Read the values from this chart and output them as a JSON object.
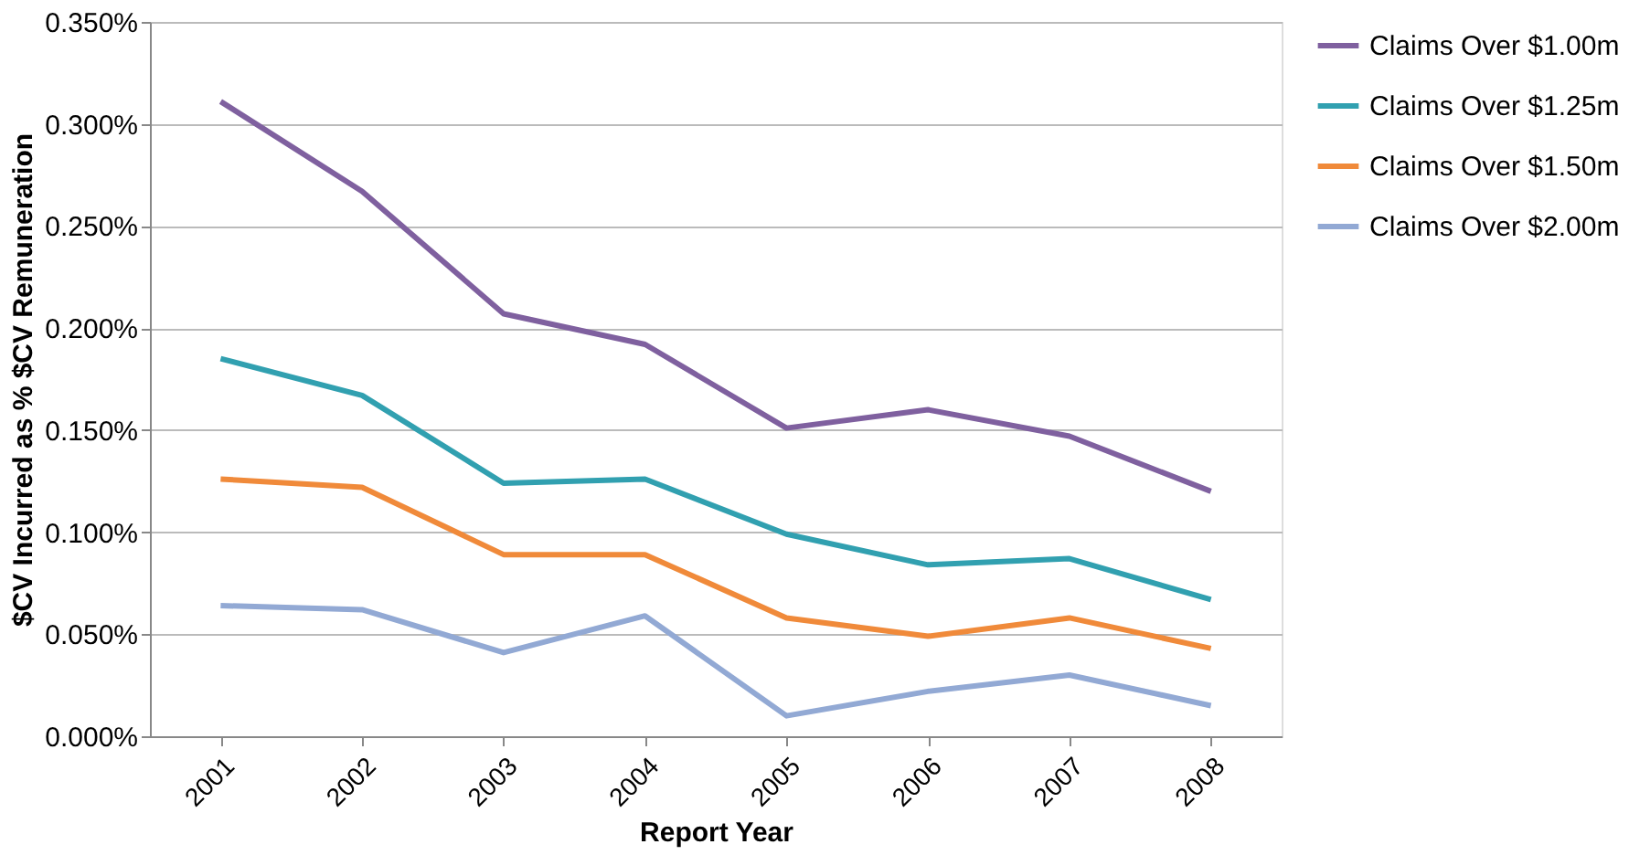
{
  "chart_data": {
    "type": "line",
    "xlabel": "Report Year",
    "ylabel": "$CV Incurred as % $CV Remuneration",
    "categories": [
      "2001",
      "2002",
      "2003",
      "2004",
      "2005",
      "2006",
      "2007",
      "2008"
    ],
    "series": [
      {
        "name": "Claims Over $1.00m",
        "color": "#7f609f",
        "values": [
          0.311,
          0.267,
          0.207,
          0.192,
          0.151,
          0.16,
          0.147,
          0.12
        ]
      },
      {
        "name": "Claims Over $1.25m",
        "color": "#31a0b0",
        "values": [
          0.185,
          0.167,
          0.124,
          0.126,
          0.099,
          0.084,
          0.087,
          0.067
        ]
      },
      {
        "name": "Claims Over $1.50m",
        "color": "#f08a3a",
        "values": [
          0.126,
          0.122,
          0.089,
          0.089,
          0.058,
          0.049,
          0.058,
          0.043
        ]
      },
      {
        "name": "Claims Over $2.00m",
        "color": "#92a9d4",
        "values": [
          0.064,
          0.062,
          0.041,
          0.059,
          0.01,
          0.022,
          0.03,
          0.015
        ]
      }
    ],
    "ylim": [
      0,
      0.35
    ],
    "yticks": [
      {
        "value": 0,
        "label": "0.000%"
      },
      {
        "value": 0.05,
        "label": "0.050%"
      },
      {
        "value": 0.1,
        "label": "0.100%"
      },
      {
        "value": 0.15,
        "label": "0.150%"
      },
      {
        "value": 0.2,
        "label": "0.200%"
      },
      {
        "value": 0.25,
        "label": "0.250%"
      },
      {
        "value": 0.3,
        "label": "0.300%"
      },
      {
        "value": 0.35,
        "label": "0.350%"
      }
    ],
    "grid": "y",
    "legend": "right",
    "marker": "none",
    "line_style": "solid"
  }
}
